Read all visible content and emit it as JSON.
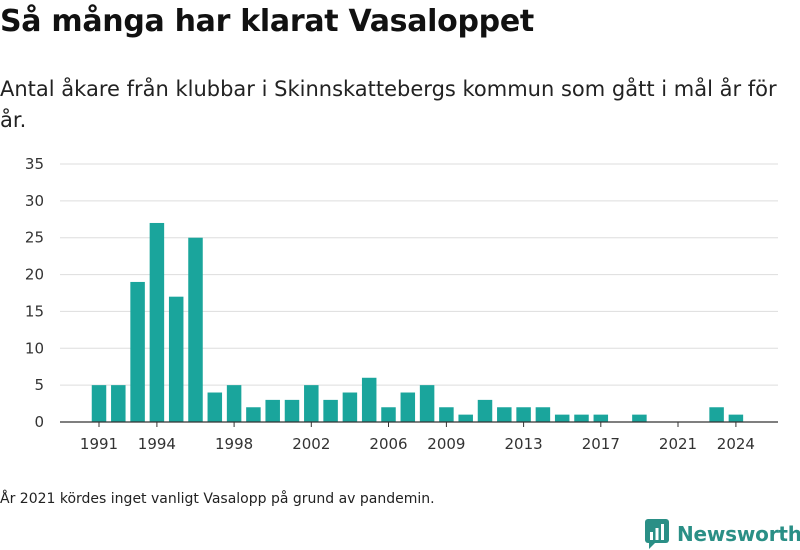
{
  "title": "Så många har klarat Vasaloppet",
  "subtitle": "Antal åkare från klubbar i Skinnskattebergs kommun som gått i mål år för år.",
  "note": "År 2021 kördes inget vanligt Vasalopp på grund av pandemin.",
  "logo": {
    "text": "Newsworthy",
    "icon": "newsworthy-logo-icon",
    "color": "#2a8f86"
  },
  "colors": {
    "bar": "#1aa59c",
    "grid": "#dddddd",
    "axis": "#333333"
  },
  "chart_data": {
    "type": "bar",
    "title": "Så många har klarat Vasaloppet",
    "xlabel": "",
    "ylabel": "",
    "ylim": [
      0,
      35
    ],
    "yticks": [
      0,
      5,
      10,
      15,
      20,
      25,
      30,
      35
    ],
    "xticks": [
      "1991",
      "1994",
      "1998",
      "2002",
      "2006",
      "2009",
      "2013",
      "2017",
      "2021",
      "2024"
    ],
    "grid": true,
    "categories": [
      1991,
      1992,
      1993,
      1994,
      1995,
      1996,
      1997,
      1998,
      1999,
      2000,
      2001,
      2002,
      2003,
      2004,
      2005,
      2006,
      2007,
      2008,
      2009,
      2010,
      2011,
      2012,
      2013,
      2014,
      2015,
      2016,
      2017,
      2018,
      2019,
      2020,
      2021,
      2022,
      2023,
      2024
    ],
    "values": [
      5,
      5,
      19,
      27,
      17,
      25,
      4,
      5,
      2,
      3,
      3,
      5,
      3,
      4,
      6,
      2,
      4,
      5,
      2,
      1,
      3,
      2,
      2,
      2,
      1,
      1,
      1,
      0,
      1,
      0,
      0,
      0,
      2,
      1
    ]
  }
}
